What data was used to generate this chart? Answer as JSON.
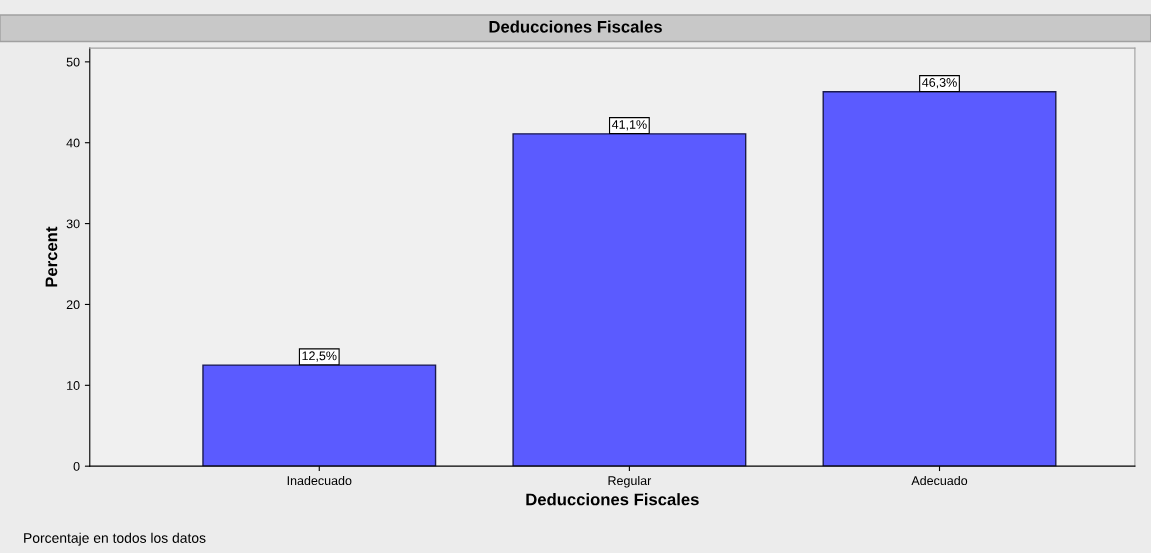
{
  "chart_data": {
    "type": "bar",
    "title": "Deducciones Fiscales",
    "xlabel": "Deducciones Fiscales",
    "ylabel": "Percent",
    "categories": [
      "Inadecuado",
      "Regular",
      "Adecuado"
    ],
    "values": [
      12.5,
      41.1,
      46.3
    ],
    "value_labels": [
      "12,5%",
      "41,1%",
      "46,3%"
    ],
    "color": "#5b5bff",
    "ylim": [
      0,
      51.7
    ],
    "yticks": [
      0,
      10,
      20,
      30,
      40,
      50
    ],
    "grid": false,
    "annotations": [
      "Porcentaje en todos los datos"
    ]
  }
}
